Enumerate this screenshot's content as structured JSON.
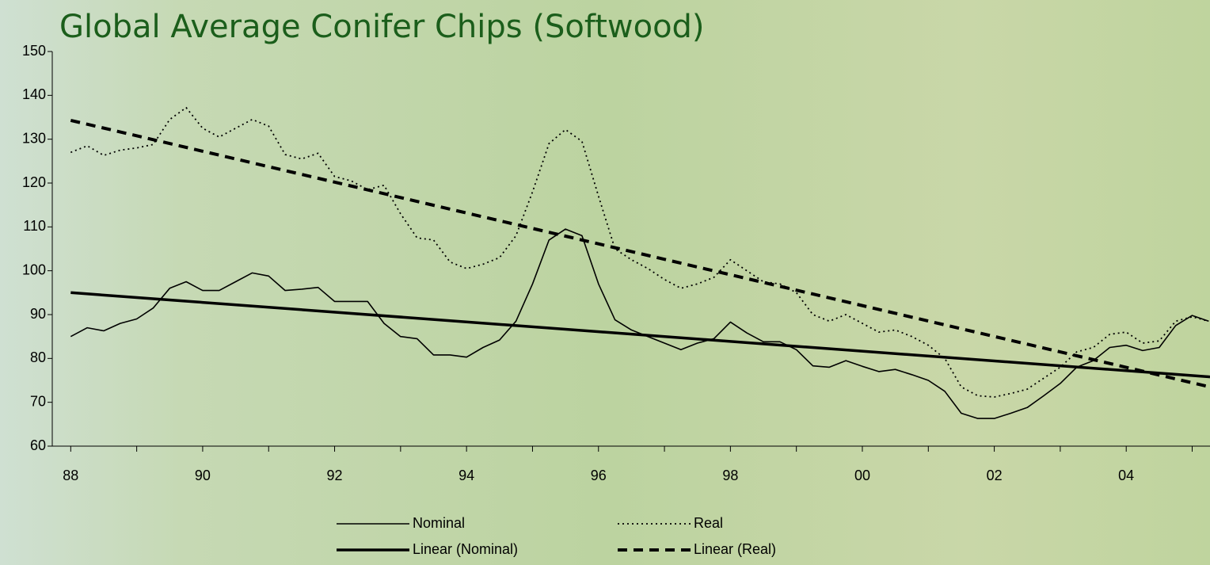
{
  "chart_data": {
    "type": "line",
    "title": "Global Average Conifer Chips (Softwood)",
    "x": [
      88,
      88.25,
      88.5,
      88.75,
      89,
      89.25,
      89.5,
      89.75,
      90,
      90.25,
      90.5,
      90.75,
      91,
      91.25,
      91.5,
      91.75,
      92,
      92.25,
      92.5,
      92.75,
      93,
      93.25,
      93.5,
      93.75,
      94,
      94.25,
      94.5,
      94.75,
      95,
      95.25,
      95.5,
      95.75,
      96,
      96.25,
      96.5,
      96.75,
      97,
      97.25,
      97.5,
      97.75,
      98,
      98.25,
      98.5,
      98.75,
      99,
      99.25,
      99.5,
      99.75,
      100,
      100.25,
      100.5,
      100.75,
      101,
      101.25,
      101.5,
      101.75,
      102,
      102.25,
      102.5,
      102.75,
      103,
      103.25,
      103.5,
      103.75,
      104,
      104.25,
      104.5,
      104.75,
      105,
      105.25
    ],
    "series": [
      {
        "name": "Nominal",
        "color": "#000000",
        "style": "solid",
        "width": 1.6,
        "values": [
          85,
          87,
          86.3,
          88,
          89,
          91.5,
          96,
          97.5,
          95.5,
          95.5,
          97.5,
          99.5,
          98.8,
          95.5,
          95.8,
          96.2,
          93,
          93,
          93,
          88,
          85,
          84.5,
          80.8,
          80.8,
          80.3,
          82.5,
          84.2,
          88.5,
          97,
          107,
          109.5,
          108,
          97,
          88.8,
          86.5,
          85,
          83.5,
          82,
          83.5,
          84.5,
          88.3,
          85.8,
          83.8,
          83.8,
          82,
          78.3,
          78,
          79.5,
          78.2,
          77,
          77.5,
          76.3,
          75,
          72.5,
          67.5,
          66.3,
          66.3,
          67.5,
          68.8,
          71.5,
          74.3,
          78,
          79.5,
          82.5,
          83,
          81.8,
          82.5,
          87.5,
          89.8,
          88.5
        ]
      },
      {
        "name": "Real",
        "color": "#000000",
        "style": "dotted",
        "width": 1.8,
        "values": [
          127,
          128.5,
          126.3,
          127.5,
          128,
          128.8,
          134.5,
          137.2,
          132.5,
          130.5,
          132.5,
          134.5,
          133,
          126.5,
          125.5,
          126.8,
          121.5,
          120.5,
          118.5,
          119.5,
          113,
          107.5,
          107,
          102,
          100.5,
          101.5,
          103,
          108,
          118,
          129,
          132.2,
          129.5,
          117,
          105,
          102.5,
          100.5,
          98,
          96,
          97,
          98.5,
          102.5,
          100,
          97.5,
          97,
          95,
          90,
          88.5,
          90,
          88,
          86,
          86.5,
          85,
          83,
          80,
          73.5,
          71.5,
          71.2,
          72,
          73,
          75.5,
          78,
          81.5,
          82.5,
          85.5,
          86,
          83.5,
          84,
          88.5,
          89.5,
          88.5
        ]
      },
      {
        "name": "Linear (Nominal)",
        "color": "#000000",
        "style": "solid",
        "width": 3.5,
        "x": [
          88,
          105.27
        ],
        "values": [
          95,
          75.8
        ]
      },
      {
        "name": "Linear (Real)",
        "color": "#000000",
        "style": "dashed",
        "width": 4,
        "x": [
          88,
          105.27
        ],
        "values": [
          134.3,
          73.5
        ]
      }
    ],
    "xlim": [
      87.72,
      105.27
    ],
    "xticks": [
      88,
      90,
      92,
      94,
      96,
      98,
      {
        "value": 100,
        "label": "00"
      },
      {
        "value": 102,
        "label": "02"
      },
      {
        "value": 104,
        "label": "04"
      }
    ],
    "xminorticks": [
      89,
      91,
      93,
      95,
      97,
      99,
      101,
      103,
      105
    ],
    "ylim": [
      60,
      150
    ],
    "yticks": [
      60,
      70,
      80,
      90,
      100,
      110,
      120,
      130,
      140,
      150
    ],
    "grid": false
  }
}
